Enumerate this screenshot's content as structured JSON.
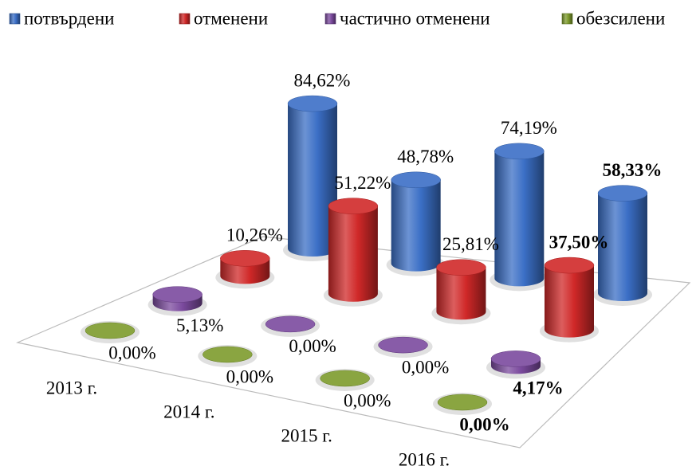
{
  "chart_data": {
    "type": "cylinder3d",
    "categories": [
      "2013 г.",
      "2014 г.",
      "2015 г.",
      "2016 г."
    ],
    "series": [
      {
        "name": "потвърдени",
        "color": "#3b6fc6",
        "values": [
          84.62,
          48.78,
          74.19,
          58.33
        ],
        "value_labels": [
          "84,62%",
          "48,78%",
          "74,19%",
          "58,33%"
        ]
      },
      {
        "name": "отменени",
        "color": "#d02828",
        "values": [
          10.26,
          51.22,
          25.81,
          37.5
        ],
        "value_labels": [
          "10,26%",
          "51,22%",
          "25,81%",
          "37,50%"
        ]
      },
      {
        "name": "частично отменени",
        "color": "#7b4a9e",
        "values": [
          5.13,
          0.0,
          0.0,
          4.17
        ],
        "value_labels": [
          "5,13%",
          "0,00%",
          "0,00%",
          "4,17%"
        ]
      },
      {
        "name": "обезсилени",
        "color": "#7d9b2c",
        "values": [
          0.0,
          0.0,
          0.0,
          0.0
        ],
        "value_labels": [
          "0,00%",
          "0,00%",
          "0,00%",
          "0,00%"
        ]
      }
    ],
    "legend": "top"
  }
}
